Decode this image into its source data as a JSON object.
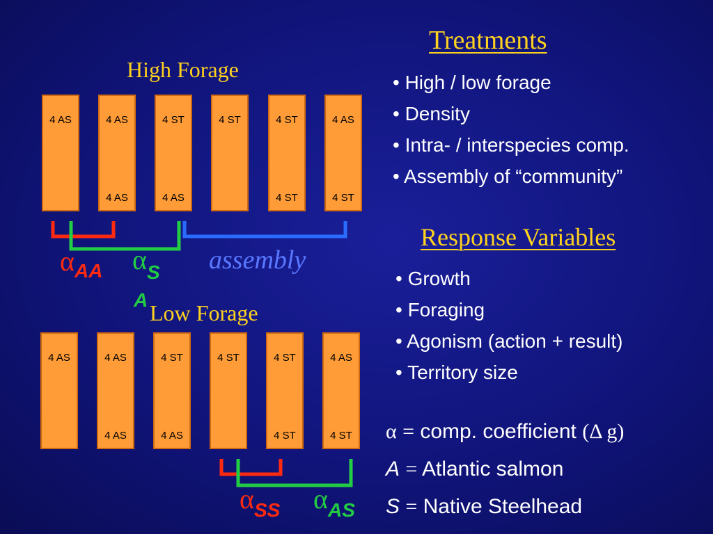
{
  "left": {
    "high_title": "High Forage",
    "low_title": "Low Forage",
    "high_boxes": [
      {
        "top": "4 AS",
        "bottom": ""
      },
      {
        "top": "4 AS",
        "bottom": "4 AS"
      },
      {
        "top": "4 ST",
        "bottom": "4 AS"
      },
      {
        "top": "4 ST",
        "bottom": ""
      },
      {
        "top": "4 ST",
        "bottom": "4 ST"
      },
      {
        "top": "4 AS",
        "bottom": "4 ST"
      }
    ],
    "low_boxes": [
      {
        "top": "4 AS",
        "bottom": ""
      },
      {
        "top": "4 AS",
        "bottom": "4 AS"
      },
      {
        "top": "4 ST",
        "bottom": "4 AS"
      },
      {
        "top": "4 ST",
        "bottom": ""
      },
      {
        "top": "4 ST",
        "bottom": "4 ST"
      },
      {
        "top": "4 AS",
        "bottom": "4 ST"
      }
    ],
    "alpha_symbol": "α",
    "alpha_aa_sub": "AA",
    "alpha_sa_sub": "S",
    "alpha_sa_sub2": "A",
    "assembly": "assembly",
    "alpha_ss_sub": "SS",
    "alpha_as_sub": "AS"
  },
  "right": {
    "treatments_title": "Treatments",
    "treatments": [
      "• High / low forage",
      "• Density",
      "• Intra- / interspecies comp.",
      "• Assembly of “community”"
    ],
    "response_title": "Response Variables",
    "responses": [
      "• Growth",
      "• Foraging",
      "• Agonism (action + result)",
      "• Territory size"
    ],
    "defs": {
      "alpha_sym": "α",
      "eq": "=",
      "alpha_text": "comp. coefficient",
      "alpha_paren": "(Δ g)",
      "a_sym": "A",
      "a_text": "Atlantic salmon",
      "s_sym": "S",
      "s_text": "Native Steelhead"
    }
  },
  "colors": {
    "box_fill": "#ff9c37",
    "heading": "#ffd21e",
    "red": "#ff2a10",
    "green": "#22cc44",
    "blue": "#2a6cff",
    "assembly": "#5a78ff"
  }
}
